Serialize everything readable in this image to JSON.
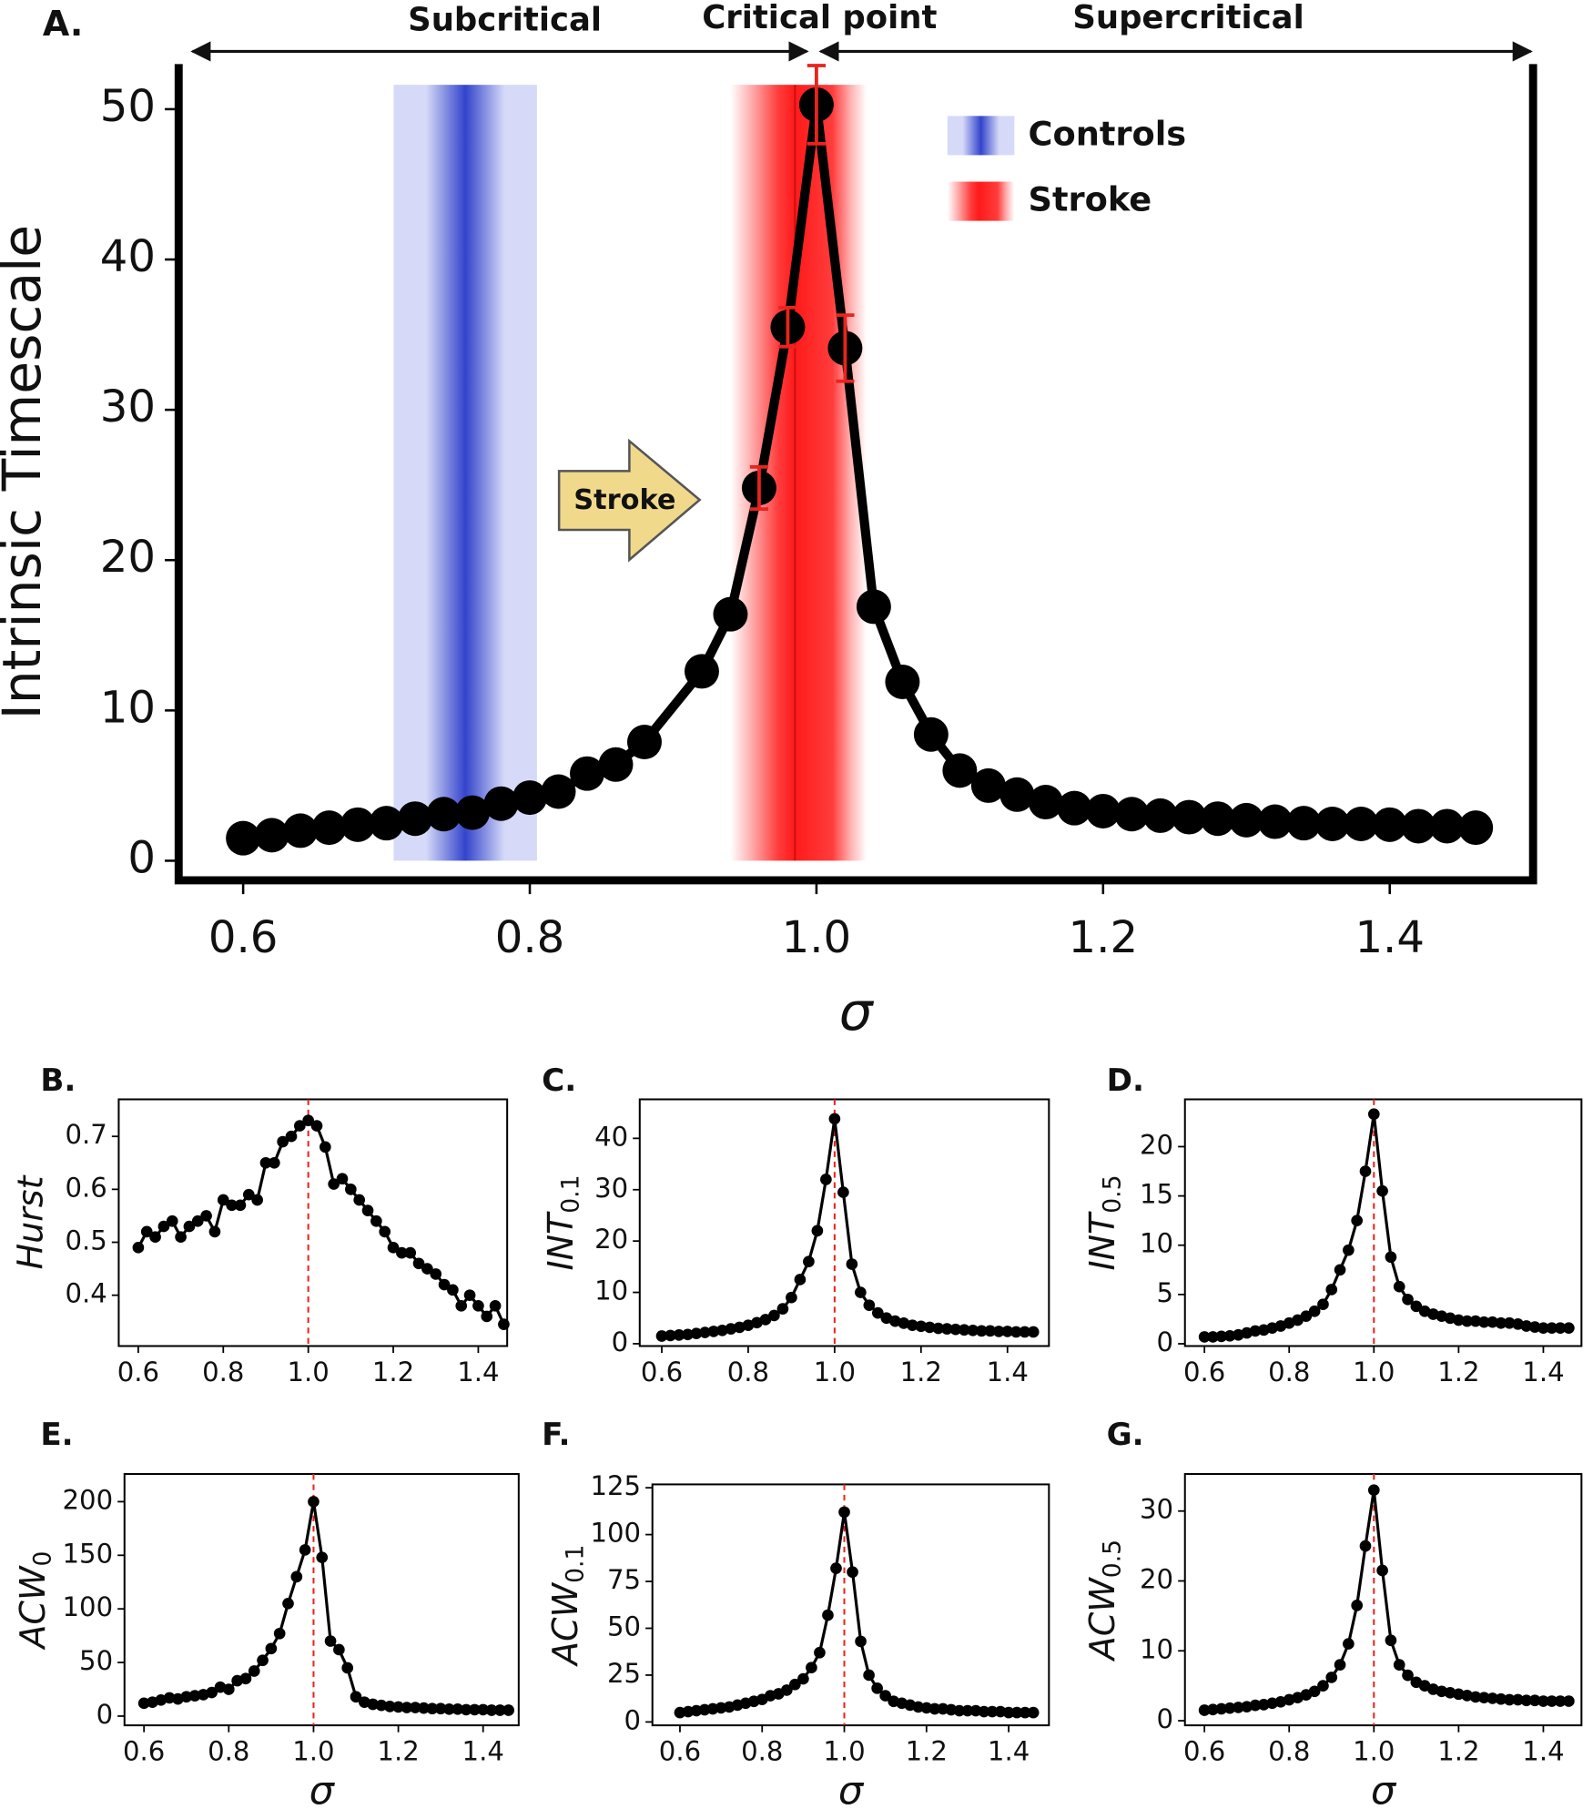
{
  "chart_data": [
    {
      "type": "line",
      "title": "A.",
      "x_label": "σ",
      "y_label": {
        "text": "Intrinsic Timescale"
      },
      "xlim": [
        0.555,
        1.5
      ],
      "ylim": [
        -1.3,
        53
      ],
      "xticks": [
        0.6,
        0.8,
        {
          "value": 1.0,
          "label": "1.0"
        },
        1.2,
        1.4
      ],
      "yticks": [
        0,
        10,
        20,
        30,
        40,
        50
      ],
      "x": [
        0.6,
        0.62,
        0.64,
        0.66,
        0.68,
        0.7,
        0.72,
        0.74,
        0.76,
        0.78,
        0.8,
        0.82,
        0.84,
        0.86,
        0.88,
        0.92,
        0.94,
        0.96,
        0.98,
        1.0,
        1.02,
        1.04,
        1.06,
        1.08,
        1.1,
        1.12,
        1.14,
        1.16,
        1.18,
        1.2,
        1.22,
        1.24,
        1.26,
        1.28,
        1.3,
        1.32,
        1.34,
        1.36,
        1.38,
        1.4,
        1.42,
        1.44,
        1.46
      ],
      "series": [
        {
          "color": "#000000",
          "error_color": "#e8241c",
          "values": [
            1.5,
            1.7,
            2.0,
            2.2,
            2.4,
            2.5,
            2.8,
            3.1,
            3.2,
            3.8,
            4.2,
            4.6,
            5.8,
            6.4,
            7.9,
            12.6,
            16.4,
            24.8,
            35.5,
            50.3,
            34.1,
            16.9,
            11.9,
            8.4,
            6.0,
            5.0,
            4.4,
            3.9,
            3.5,
            3.3,
            3.1,
            3.0,
            2.9,
            2.8,
            2.7,
            2.6,
            2.5,
            2.45,
            2.45,
            2.4,
            2.3,
            2.3,
            2.2
          ],
          "errors": [
            null,
            null,
            null,
            null,
            null,
            null,
            null,
            null,
            null,
            null,
            null,
            null,
            null,
            null,
            null,
            null,
            null,
            1.4,
            1.3,
            2.6,
            2.2,
            null,
            null,
            null,
            null,
            null,
            null,
            null,
            null,
            null,
            null,
            null,
            null,
            null,
            null,
            null,
            null,
            null,
            null,
            null,
            null,
            null,
            null
          ]
        }
      ],
      "bands": [
        {
          "name": "Controls",
          "color": "#3344cc",
          "edge_color": "#d6daf8",
          "range": [
            0.705,
            0.805
          ],
          "center": 0.755
        },
        {
          "name": "Stroke",
          "color": "#ff1a1a",
          "edge_color": "#ffffff",
          "range": [
            0.94,
            1.035
          ],
          "center": 0.985
        }
      ],
      "annotations": {
        "regions": [
          "Subcritical",
          "Critical point",
          "Supercritical"
        ],
        "arrow": "Stroke"
      }
    },
    {
      "type": "line",
      "title": "B.",
      "y_label": {
        "text": "Hurst"
      },
      "xlim": [
        0.554,
        1.468
      ],
      "ylim": [
        0.304,
        0.77
      ],
      "xticks": [
        0.6,
        0.8,
        {
          "value": 1.0,
          "label": "1.0"
        },
        1.2,
        1.4
      ],
      "yticks": [
        0.4,
        0.5,
        0.6,
        0.7
      ],
      "vline": 1.0,
      "vline_color": "#e8241c",
      "x": [
        0.6,
        0.62,
        0.64,
        0.66,
        0.68,
        0.7,
        0.72,
        0.74,
        0.76,
        0.78,
        0.8,
        0.82,
        0.84,
        0.86,
        0.88,
        0.9,
        0.92,
        0.94,
        0.96,
        0.98,
        1.0,
        1.02,
        1.04,
        1.06,
        1.08,
        1.1,
        1.12,
        1.14,
        1.16,
        1.18,
        1.2,
        1.22,
        1.24,
        1.26,
        1.28,
        1.3,
        1.32,
        1.34,
        1.36,
        1.38,
        1.4,
        1.42,
        1.44,
        1.46
      ],
      "series": [
        {
          "color": "#000000",
          "values": [
            0.49,
            0.52,
            0.51,
            0.53,
            0.54,
            0.51,
            0.53,
            0.54,
            0.55,
            0.52,
            0.58,
            0.57,
            0.57,
            0.59,
            0.58,
            0.65,
            0.65,
            0.69,
            0.7,
            0.72,
            0.73,
            0.72,
            0.68,
            0.61,
            0.62,
            0.6,
            0.58,
            0.56,
            0.54,
            0.52,
            0.49,
            0.48,
            0.48,
            0.46,
            0.45,
            0.44,
            0.42,
            0.41,
            0.38,
            0.4,
            0.38,
            0.36,
            0.38,
            0.345
          ]
        }
      ]
    },
    {
      "type": "line",
      "title": "C.",
      "y_label": {
        "text": "INT",
        "sub": "0.1"
      },
      "xlim": [
        0.549,
        1.496
      ],
      "ylim": [
        -0.45,
        47.6
      ],
      "xticks": [
        0.6,
        0.8,
        {
          "value": 1.0,
          "label": "1.0"
        },
        1.2,
        1.4
      ],
      "yticks": [
        0,
        10,
        20,
        30,
        40
      ],
      "vline": 1.0,
      "vline_color": "#e8241c",
      "x": [
        0.6,
        0.62,
        0.64,
        0.66,
        0.68,
        0.7,
        0.72,
        0.74,
        0.76,
        0.78,
        0.8,
        0.82,
        0.84,
        0.86,
        0.88,
        0.9,
        0.92,
        0.94,
        0.96,
        0.98,
        1.0,
        1.02,
        1.04,
        1.06,
        1.08,
        1.1,
        1.12,
        1.14,
        1.16,
        1.18,
        1.2,
        1.22,
        1.24,
        1.26,
        1.28,
        1.3,
        1.32,
        1.34,
        1.36,
        1.38,
        1.4,
        1.42,
        1.44,
        1.46
      ],
      "series": [
        {
          "color": "#000000",
          "values": [
            1.5,
            1.6,
            1.7,
            1.8,
            2.0,
            2.2,
            2.4,
            2.6,
            2.9,
            3.2,
            3.6,
            4.1,
            4.7,
            5.5,
            6.8,
            9.0,
            12.5,
            16.0,
            22.0,
            32.0,
            43.8,
            29.5,
            15.5,
            10.0,
            7.5,
            6.0,
            5.0,
            4.4,
            4.0,
            3.6,
            3.4,
            3.2,
            3.0,
            2.9,
            2.8,
            2.7,
            2.6,
            2.5,
            2.5,
            2.4,
            2.4,
            2.3,
            2.3,
            2.3
          ]
        }
      ]
    },
    {
      "type": "line",
      "title": "D.",
      "y_label": {
        "text": "INT",
        "sub": "0.5"
      },
      "xlim": [
        0.554,
        1.49
      ],
      "ylim": [
        -0.23,
        24.8
      ],
      "xticks": [
        0.6,
        0.8,
        {
          "value": 1.0,
          "label": "1.0"
        },
        1.2,
        1.4
      ],
      "yticks": [
        0,
        5,
        10,
        15,
        20
      ],
      "vline": 1.0,
      "vline_color": "#e8241c",
      "x": [
        0.6,
        0.62,
        0.64,
        0.66,
        0.68,
        0.7,
        0.72,
        0.74,
        0.76,
        0.78,
        0.8,
        0.82,
        0.84,
        0.86,
        0.88,
        0.9,
        0.92,
        0.94,
        0.96,
        0.98,
        1.0,
        1.02,
        1.04,
        1.06,
        1.08,
        1.1,
        1.12,
        1.14,
        1.16,
        1.18,
        1.2,
        1.22,
        1.24,
        1.26,
        1.28,
        1.3,
        1.32,
        1.34,
        1.36,
        1.38,
        1.4,
        1.42,
        1.44,
        1.46
      ],
      "series": [
        {
          "color": "#000000",
          "values": [
            0.7,
            0.7,
            0.75,
            0.8,
            0.9,
            1.1,
            1.3,
            1.4,
            1.6,
            1.8,
            2.1,
            2.4,
            2.8,
            3.3,
            4.0,
            5.5,
            7.5,
            9.5,
            12.5,
            17.5,
            23.3,
            15.5,
            8.8,
            5.8,
            4.5,
            3.8,
            3.3,
            3.0,
            2.8,
            2.6,
            2.4,
            2.3,
            2.3,
            2.2,
            2.2,
            2.1,
            2.1,
            2.0,
            1.8,
            1.7,
            1.6,
            1.6,
            1.6,
            1.6
          ]
        }
      ]
    },
    {
      "type": "line",
      "title": "E.",
      "x_label": "σ",
      "y_label": {
        "text": "ACW",
        "sub": "0"
      },
      "xlim": [
        0.554,
        1.484
      ],
      "ylim": [
        -8.6,
        225.8
      ],
      "xticks": [
        0.6,
        0.8,
        {
          "value": 1.0,
          "label": "1.0"
        },
        1.2,
        1.4
      ],
      "yticks": [
        0,
        50,
        100,
        150,
        200
      ],
      "vline": 1.0,
      "vline_color": "#e8241c",
      "x": [
        0.6,
        0.62,
        0.64,
        0.66,
        0.68,
        0.7,
        0.72,
        0.74,
        0.76,
        0.78,
        0.8,
        0.82,
        0.84,
        0.86,
        0.88,
        0.9,
        0.92,
        0.94,
        0.96,
        0.98,
        1.0,
        1.02,
        1.04,
        1.06,
        1.08,
        1.1,
        1.12,
        1.14,
        1.16,
        1.18,
        1.2,
        1.22,
        1.24,
        1.26,
        1.28,
        1.3,
        1.32,
        1.34,
        1.36,
        1.38,
        1.4,
        1.42,
        1.44,
        1.46
      ],
      "series": [
        {
          "color": "#000000",
          "values": [
            12,
            13,
            15,
            17,
            16,
            18,
            19,
            20,
            22,
            27,
            25,
            33,
            35,
            42,
            52,
            63,
            77,
            105,
            130,
            155,
            200,
            148,
            70,
            62,
            45,
            18,
            13,
            11,
            10,
            9,
            8.5,
            8,
            8,
            7.5,
            7,
            7,
            6.5,
            6.5,
            6,
            6,
            6,
            5.5,
            5.5,
            5.5
          ]
        }
      ]
    },
    {
      "type": "line",
      "title": "F.",
      "x_label": "σ",
      "y_label": {
        "text": "ACW",
        "sub": "0.1"
      },
      "xlim": [
        0.533,
        1.498
      ],
      "ylim": [
        -1.8,
        126.8
      ],
      "xticks": [
        0.6,
        0.8,
        {
          "value": 1.0,
          "label": "1.0"
        },
        1.2,
        1.4
      ],
      "yticks": [
        0,
        25,
        50,
        75,
        100,
        125
      ],
      "vline": 1.0,
      "vline_color": "#e8241c",
      "x": [
        0.6,
        0.62,
        0.64,
        0.66,
        0.68,
        0.7,
        0.72,
        0.74,
        0.76,
        0.78,
        0.8,
        0.82,
        0.84,
        0.86,
        0.88,
        0.9,
        0.92,
        0.94,
        0.96,
        0.98,
        1.0,
        1.02,
        1.04,
        1.06,
        1.08,
        1.1,
        1.12,
        1.14,
        1.16,
        1.18,
        1.2,
        1.22,
        1.24,
        1.26,
        1.28,
        1.3,
        1.32,
        1.34,
        1.36,
        1.38,
        1.4,
        1.42,
        1.44,
        1.46
      ],
      "series": [
        {
          "color": "#000000",
          "values": [
            5,
            5.5,
            6,
            6.5,
            7,
            7.5,
            8,
            9,
            10,
            11,
            12,
            14,
            15,
            17,
            20,
            23,
            29,
            37,
            57,
            82,
            112,
            80,
            43,
            25,
            18,
            14,
            11,
            10,
            9,
            8,
            7.5,
            7,
            7,
            6.5,
            6,
            6,
            6,
            5.5,
            5.5,
            5.5,
            5,
            5,
            5,
            5
          ]
        }
      ]
    },
    {
      "type": "line",
      "title": "G.",
      "x_label": "σ",
      "y_label": {
        "text": "ACW",
        "sub": "0.5"
      },
      "xlim": [
        0.554,
        1.49
      ],
      "ylim": [
        -0.66,
        35.3
      ],
      "xticks": [
        0.6,
        0.8,
        {
          "value": 1.0,
          "label": "1.0"
        },
        1.2,
        1.4
      ],
      "yticks": [
        0,
        10,
        20,
        30
      ],
      "vline": 1.0,
      "vline_color": "#e8241c",
      "x": [
        0.6,
        0.62,
        0.64,
        0.66,
        0.68,
        0.7,
        0.72,
        0.74,
        0.76,
        0.78,
        0.8,
        0.82,
        0.84,
        0.86,
        0.88,
        0.9,
        0.92,
        0.94,
        0.96,
        0.98,
        1.0,
        1.02,
        1.04,
        1.06,
        1.08,
        1.1,
        1.12,
        1.14,
        1.16,
        1.18,
        1.2,
        1.22,
        1.24,
        1.26,
        1.28,
        1.3,
        1.32,
        1.34,
        1.36,
        1.38,
        1.4,
        1.42,
        1.44,
        1.46
      ],
      "series": [
        {
          "color": "#000000",
          "values": [
            1.5,
            1.6,
            1.7,
            1.8,
            1.9,
            2.0,
            2.2,
            2.3,
            2.5,
            2.7,
            3.0,
            3.3,
            3.7,
            4.2,
            5.0,
            6.2,
            8.0,
            11.0,
            16.5,
            25,
            33,
            21.5,
            11.5,
            8.0,
            6.5,
            5.5,
            5.0,
            4.5,
            4.2,
            4.0,
            3.8,
            3.6,
            3.4,
            3.3,
            3.2,
            3.1,
            3.0,
            3.0,
            2.9,
            2.9,
            2.8,
            2.8,
            2.8,
            2.8
          ]
        }
      ]
    }
  ]
}
